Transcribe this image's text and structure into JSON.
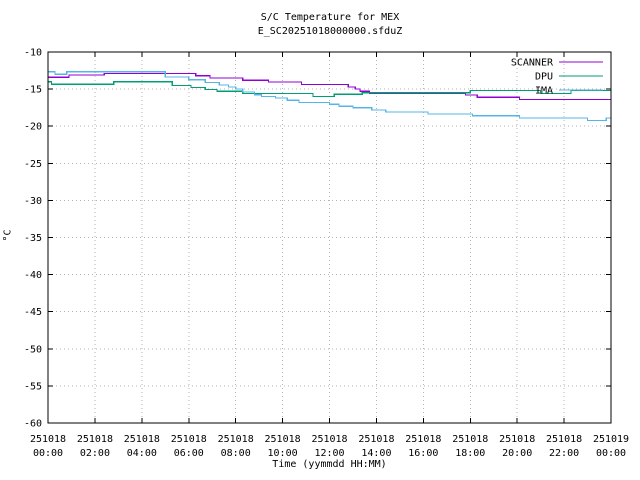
{
  "window": {
    "background": "#ffffff"
  },
  "chart_data": {
    "type": "line",
    "title": "S/C Temperature for MEX",
    "subtitle": "E_SC20251018000000.sfduZ",
    "xlabel": "Time (yymmdd HH:MM)",
    "ylabel": "°C",
    "ylim": [
      -60,
      -10
    ],
    "y_ticks": [
      -60,
      -55,
      -50,
      -45,
      -40,
      -35,
      -30,
      -25,
      -20,
      -15,
      -10
    ],
    "x_range_hours": [
      0,
      24
    ],
    "grid": true,
    "legend_position": "top-right-inside",
    "axis_color": "#000000",
    "grid_color": "#b3b3b3",
    "x_ticks": [
      {
        "hour": 0,
        "date": "251018",
        "time": "00:00"
      },
      {
        "hour": 2,
        "date": "251018",
        "time": "02:00"
      },
      {
        "hour": 4,
        "date": "251018",
        "time": "04:00"
      },
      {
        "hour": 6,
        "date": "251018",
        "time": "06:00"
      },
      {
        "hour": 8,
        "date": "251018",
        "time": "08:00"
      },
      {
        "hour": 10,
        "date": "251018",
        "time": "10:00"
      },
      {
        "hour": 12,
        "date": "251018",
        "time": "12:00"
      },
      {
        "hour": 14,
        "date": "251018",
        "time": "14:00"
      },
      {
        "hour": 16,
        "date": "251018",
        "time": "16:00"
      },
      {
        "hour": 18,
        "date": "251018",
        "time": "18:00"
      },
      {
        "hour": 20,
        "date": "251018",
        "time": "20:00"
      },
      {
        "hour": 22,
        "date": "251018",
        "time": "22:00"
      },
      {
        "hour": 24,
        "date": "251019",
        "time": "00:00"
      }
    ],
    "series": [
      {
        "name": "SCANNER",
        "color": "#9400D3",
        "points": [
          [
            0,
            -13.4
          ],
          [
            0.9,
            -13.1
          ],
          [
            2.4,
            -12.9
          ],
          [
            6.3,
            -13.2
          ],
          [
            6.9,
            -13.5
          ],
          [
            8.3,
            -13.8
          ],
          [
            9.4,
            -14.05
          ],
          [
            10.8,
            -14.4
          ],
          [
            12.8,
            -14.7
          ],
          [
            13.1,
            -15.0
          ],
          [
            13.3,
            -15.3
          ],
          [
            13.7,
            -15.6
          ],
          [
            17.8,
            -15.8
          ],
          [
            18.3,
            -16.1
          ],
          [
            20.1,
            -16.4
          ],
          [
            24,
            -16.4
          ]
        ]
      },
      {
        "name": "DPU",
        "color": "#009E73",
        "points": [
          [
            0,
            -14.0
          ],
          [
            0.15,
            -14.35
          ],
          [
            2.8,
            -14.0
          ],
          [
            5.3,
            -14.5
          ],
          [
            6.1,
            -14.8
          ],
          [
            6.7,
            -15.05
          ],
          [
            7.2,
            -15.3
          ],
          [
            8.3,
            -15.6
          ],
          [
            11.3,
            -16.0
          ],
          [
            12.2,
            -15.7
          ],
          [
            13.4,
            -15.5
          ],
          [
            18.0,
            -15.2
          ],
          [
            21.0,
            -15.6
          ],
          [
            22.3,
            -15.2
          ],
          [
            24,
            -15.2
          ]
        ]
      },
      {
        "name": "IMA",
        "color": "#56B4E9",
        "points": [
          [
            0,
            -12.65
          ],
          [
            0.3,
            -13.0
          ],
          [
            0.8,
            -12.65
          ],
          [
            5.0,
            -13.35
          ],
          [
            6.0,
            -13.75
          ],
          [
            6.7,
            -14.1
          ],
          [
            7.3,
            -14.45
          ],
          [
            7.7,
            -14.7
          ],
          [
            8.0,
            -15.0
          ],
          [
            8.3,
            -15.4
          ],
          [
            8.8,
            -15.75
          ],
          [
            9.1,
            -16.0
          ],
          [
            9.7,
            -16.2
          ],
          [
            10.2,
            -16.5
          ],
          [
            10.7,
            -16.8
          ],
          [
            12.0,
            -17.05
          ],
          [
            12.4,
            -17.3
          ],
          [
            13.0,
            -17.5
          ],
          [
            13.8,
            -17.8
          ],
          [
            14.4,
            -18.1
          ],
          [
            16.2,
            -18.35
          ],
          [
            18.1,
            -18.6
          ],
          [
            20.1,
            -18.9
          ],
          [
            23.0,
            -19.25
          ],
          [
            23.8,
            -18.9
          ],
          [
            24,
            -18.9
          ]
        ]
      }
    ]
  }
}
